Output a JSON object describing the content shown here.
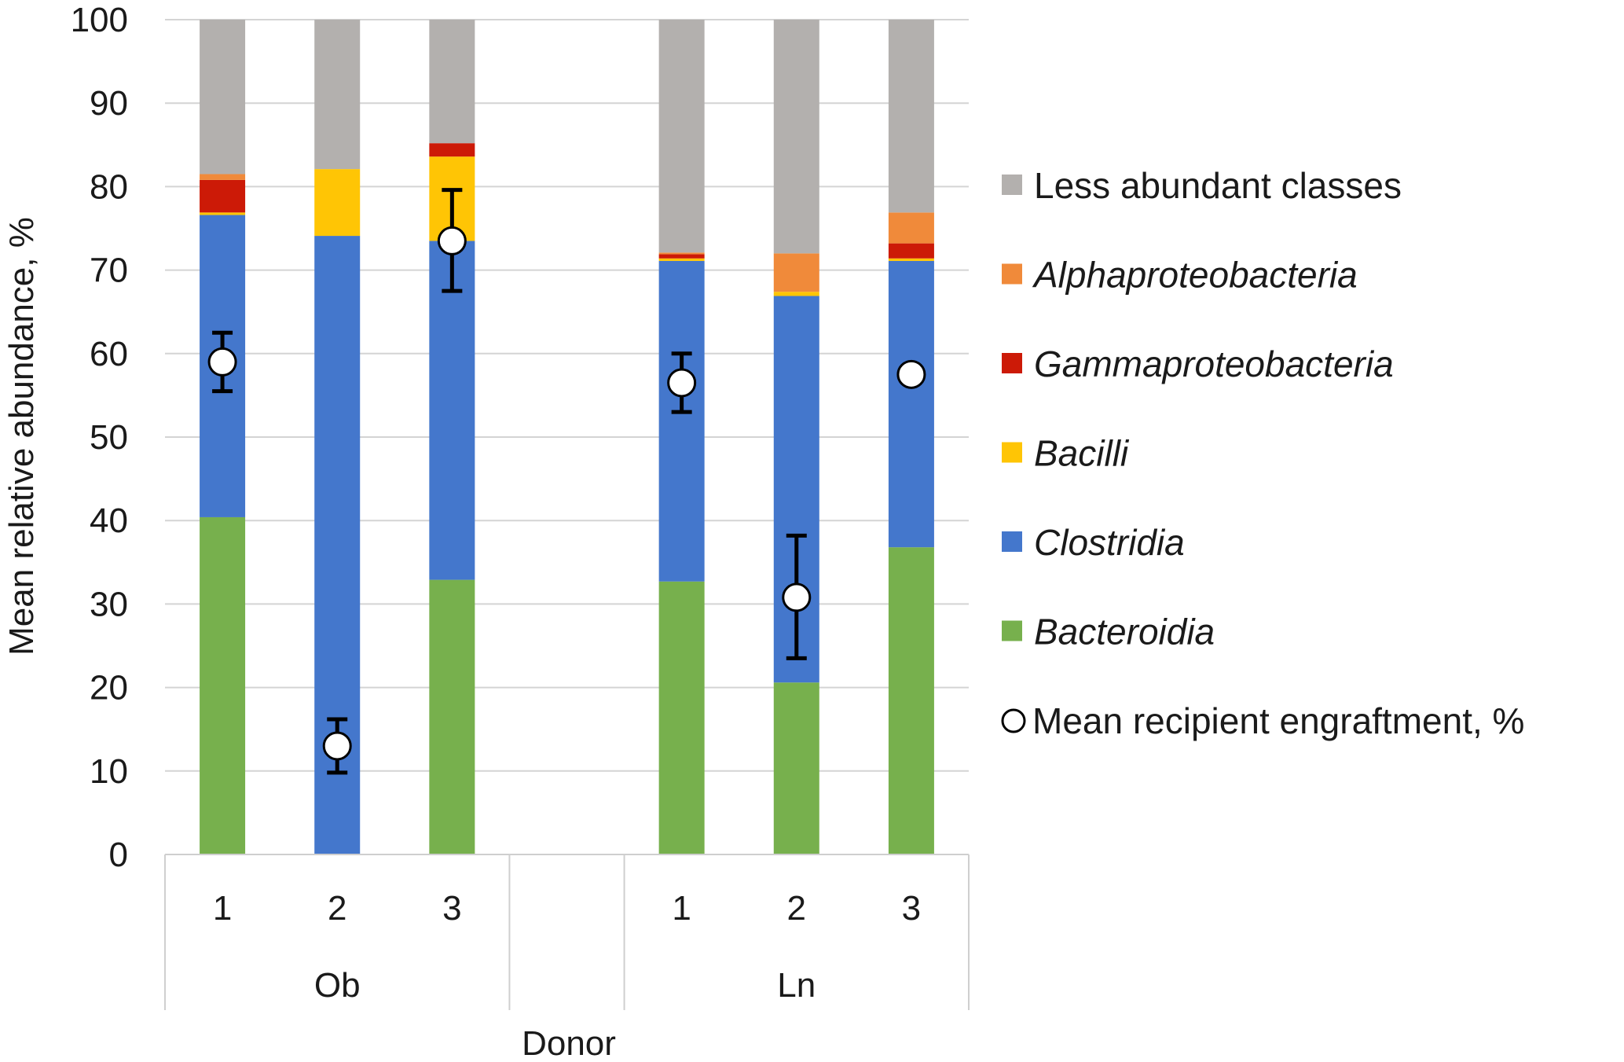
{
  "chart_data": {
    "type": "bar",
    "stacked": true,
    "ylabel": "Mean relative abundance, %",
    "xlabel": "Donor",
    "ylim": [
      0,
      100
    ],
    "yticks": [
      0,
      10,
      20,
      30,
      40,
      50,
      60,
      70,
      80,
      90,
      100
    ],
    "ytick_labels": [
      "0",
      "10",
      "20",
      "30",
      "40",
      "50",
      "60",
      "70",
      "80",
      "90",
      "100"
    ],
    "grid": true,
    "legend_position": "right",
    "groups": [
      {
        "label": "Ob",
        "categories": [
          "1",
          "2",
          "3"
        ]
      },
      {
        "label": "",
        "categories": [
          ""
        ]
      },
      {
        "label": "Ln",
        "categories": [
          "1",
          "2",
          "3"
        ]
      }
    ],
    "series": [
      {
        "name": "Bacteroidia",
        "italic": true,
        "color": "#77B04D",
        "values": [
          40.4,
          0,
          32.9,
          null,
          32.7,
          20.6,
          36.8
        ]
      },
      {
        "name": "Clostridia",
        "italic": true,
        "color": "#4477CC",
        "values": [
          36.2,
          74.1,
          40.6,
          null,
          38.4,
          46.3,
          34.3
        ]
      },
      {
        "name": "Bacilli",
        "italic": true,
        "color": "#FFC505",
        "values": [
          0.3,
          8.0,
          10.1,
          null,
          0.3,
          0.5,
          0.3
        ]
      },
      {
        "name": "Gammaproteobacteria",
        "italic": true,
        "color": "#CC1A07",
        "values": [
          3.9,
          0,
          1.6,
          null,
          0.5,
          0,
          1.8
        ]
      },
      {
        "name": "Alphaproteobacteria",
        "italic": true,
        "color": "#F08A3A",
        "values": [
          0.7,
          0,
          0,
          null,
          0.2,
          4.6,
          3.7
        ]
      },
      {
        "name": "Less abundant classes",
        "italic": false,
        "color": "#B3B0AE",
        "values": [
          18.5,
          17.9,
          14.8,
          null,
          27.9,
          28.0,
          23.1
        ]
      }
    ],
    "engraftment": {
      "name": "Mean recipient engraftment, %",
      "values": [
        59.0,
        13.0,
        73.5,
        null,
        56.5,
        30.8,
        57.5
      ],
      "error_low": [
        55.5,
        9.8,
        67.5,
        null,
        53.0,
        23.5,
        null
      ],
      "error_high": [
        62.5,
        16.2,
        79.6,
        null,
        60.0,
        38.2,
        null
      ]
    }
  }
}
